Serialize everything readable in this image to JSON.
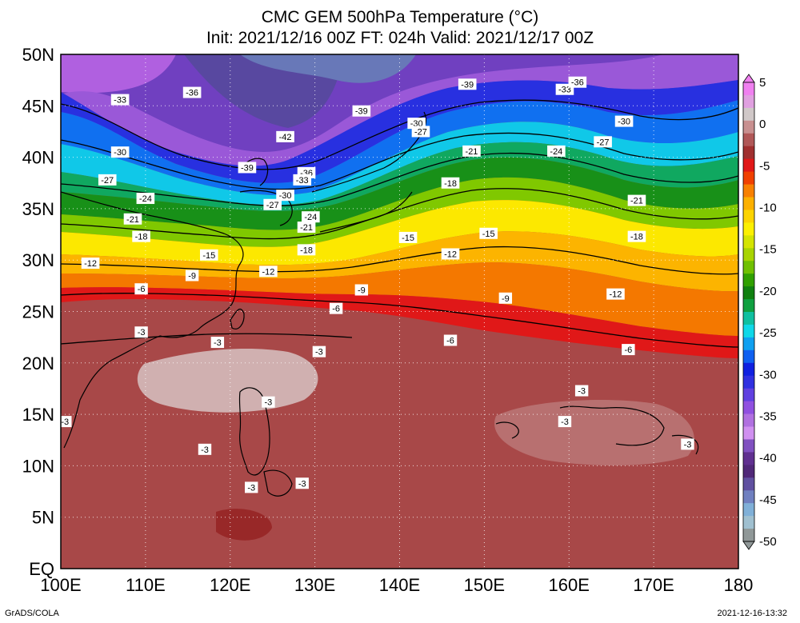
{
  "title": {
    "line1": "CMC GEM 500hPa Temperature (°C)",
    "line2": "Init: 2021/12/16 00Z  FT: 024h  Valid: 2021/12/17 00Z"
  },
  "map": {
    "lon_range": [
      100,
      180
    ],
    "lat_range": [
      0,
      50
    ],
    "lon_ticks": [
      "100E",
      "110E",
      "120E",
      "130E",
      "140E",
      "150E",
      "160E",
      "170E",
      "180"
    ],
    "lat_ticks": [
      "EQ",
      "5N",
      "10N",
      "15N",
      "20N",
      "25N",
      "30N",
      "35N",
      "40N",
      "45N",
      "50N"
    ],
    "grid": "dotted",
    "isotherm_labels": [
      {
        "text": "-33",
        "lon": 107.0,
        "lat": 45.6
      },
      {
        "text": "-36",
        "lon": 115.5,
        "lat": 46.3
      },
      {
        "text": "-39",
        "lon": 148.0,
        "lat": 47.1
      },
      {
        "text": "-33",
        "lon": 159.5,
        "lat": 46.6
      },
      {
        "text": "-36",
        "lon": 161.0,
        "lat": 47.3
      },
      {
        "text": "-42",
        "lon": 126.5,
        "lat": 42.0
      },
      {
        "text": "-39",
        "lon": 135.5,
        "lat": 44.5
      },
      {
        "text": "-30",
        "lon": 142.0,
        "lat": 43.3
      },
      {
        "text": "-27",
        "lon": 142.5,
        "lat": 42.5
      },
      {
        "text": "-30",
        "lon": 166.5,
        "lat": 43.5
      },
      {
        "text": "-27",
        "lon": 164.0,
        "lat": 41.5
      },
      {
        "text": "-21",
        "lon": 148.5,
        "lat": 40.6
      },
      {
        "text": "-24",
        "lon": 158.5,
        "lat": 40.6
      },
      {
        "text": "-30",
        "lon": 107.0,
        "lat": 40.5
      },
      {
        "text": "-39",
        "lon": 122.0,
        "lat": 39.0
      },
      {
        "text": "-36",
        "lon": 129.0,
        "lat": 38.5
      },
      {
        "text": "-33",
        "lon": 128.5,
        "lat": 37.8
      },
      {
        "text": "-27",
        "lon": 105.5,
        "lat": 37.8
      },
      {
        "text": "-18",
        "lon": 146.0,
        "lat": 37.5
      },
      {
        "text": "-30",
        "lon": 126.5,
        "lat": 36.3
      },
      {
        "text": "-27",
        "lon": 125.0,
        "lat": 35.4
      },
      {
        "text": "-24",
        "lon": 110.0,
        "lat": 36.0
      },
      {
        "text": "-21",
        "lon": 168.0,
        "lat": 35.8
      },
      {
        "text": "-24",
        "lon": 129.5,
        "lat": 34.2
      },
      {
        "text": "-21",
        "lon": 129.0,
        "lat": 33.2
      },
      {
        "text": "-21",
        "lon": 108.5,
        "lat": 34.0
      },
      {
        "text": "-18",
        "lon": 109.5,
        "lat": 32.3
      },
      {
        "text": "-15",
        "lon": 150.5,
        "lat": 32.6
      },
      {
        "text": "-15",
        "lon": 141.0,
        "lat": 32.2
      },
      {
        "text": "-18",
        "lon": 168.0,
        "lat": 32.3
      },
      {
        "text": "-18",
        "lon": 129.0,
        "lat": 31.0
      },
      {
        "text": "-15",
        "lon": 117.5,
        "lat": 30.5
      },
      {
        "text": "-12",
        "lon": 146.0,
        "lat": 30.6
      },
      {
        "text": "-12",
        "lon": 103.5,
        "lat": 29.7
      },
      {
        "text": "-12",
        "lon": 124.5,
        "lat": 28.9
      },
      {
        "text": "-9",
        "lon": 115.5,
        "lat": 28.5
      },
      {
        "text": "-6",
        "lon": 109.5,
        "lat": 27.2
      },
      {
        "text": "-9",
        "lon": 135.5,
        "lat": 27.1
      },
      {
        "text": "-12",
        "lon": 165.5,
        "lat": 26.7
      },
      {
        "text": "-9",
        "lon": 152.5,
        "lat": 26.3
      },
      {
        "text": "-6",
        "lon": 132.5,
        "lat": 25.3
      },
      {
        "text": "-3",
        "lon": 109.5,
        "lat": 23.0
      },
      {
        "text": "-6",
        "lon": 146.0,
        "lat": 22.2
      },
      {
        "text": "-3",
        "lon": 118.5,
        "lat": 22.0
      },
      {
        "text": "-6",
        "lon": 167.0,
        "lat": 21.3
      },
      {
        "text": "-3",
        "lon": 130.5,
        "lat": 21.1
      },
      {
        "text": "-3",
        "lon": 161.5,
        "lat": 17.3
      },
      {
        "text": "-3",
        "lon": 124.5,
        "lat": 16.2
      },
      {
        "text": "-3",
        "lon": 100.5,
        "lat": 14.3
      },
      {
        "text": "-3",
        "lon": 159.5,
        "lat": 14.3
      },
      {
        "text": "-3",
        "lon": 117.0,
        "lat": 11.6
      },
      {
        "text": "-3",
        "lon": 174.0,
        "lat": 12.1
      },
      {
        "text": "-3",
        "lon": 128.5,
        "lat": 8.3
      },
      {
        "text": "-3",
        "lon": 122.5,
        "lat": 7.9
      }
    ]
  },
  "colorbar": {
    "labels": [
      "5",
      "0",
      "-5",
      "-10",
      "-15",
      "-20",
      "-25",
      "-30",
      "-35",
      "-40",
      "-45",
      "-50"
    ],
    "colors": [
      "#f080f0",
      "#e0a0e0",
      "#d0c8c8",
      "#c89090",
      "#b05858",
      "#a03030",
      "#e01818",
      "#f04000",
      "#f88000",
      "#fcb000",
      "#fcd400",
      "#fcf000",
      "#d4e400",
      "#a8d400",
      "#70c000",
      "#30a000",
      "#108010",
      "#10a040",
      "#10c0a0",
      "#10d8e8",
      "#10a0f0",
      "#1060f0",
      "#1020e0",
      "#3030e0",
      "#6040e0",
      "#9050e0",
      "#b070e0",
      "#d090f0",
      "#8050c0",
      "#603090",
      "#502878",
      "#6050a0",
      "#7080c0",
      "#80b0d8",
      "#a0c0d0",
      "#909898"
    ]
  },
  "footer": {
    "credit": "GrADS/COLA",
    "timestamp": "2021-12-16-13:32"
  }
}
